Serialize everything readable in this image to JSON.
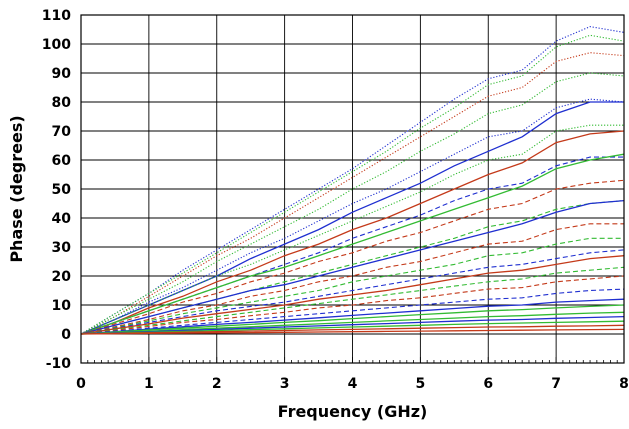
{
  "chart_data": {
    "type": "line",
    "title": "",
    "xlabel": "Frequency (GHz)",
    "ylabel": "Phase (degrees)",
    "xlim": [
      0,
      8
    ],
    "ylim": [
      -10,
      110
    ],
    "x_ticks": [
      0,
      1,
      2,
      3,
      4,
      5,
      6,
      7,
      8
    ],
    "y_ticks": [
      -10,
      0,
      10,
      20,
      30,
      40,
      50,
      60,
      70,
      80,
      90,
      100,
      110
    ],
    "grid": true,
    "legend": "none",
    "x": [
      0,
      0.5,
      1,
      1.5,
      2,
      2.5,
      3,
      3.5,
      4,
      4.5,
      5,
      5.5,
      6,
      6.5,
      7,
      7.5,
      8
    ],
    "series_colors": {
      "blue": "#1f2fd0",
      "green": "#33bb33",
      "red": "#c43a1a"
    },
    "series": [
      {
        "color": "blue",
        "style": "dotted",
        "values": [
          0,
          7,
          14,
          22,
          29,
          36,
          43,
          50,
          57,
          65,
          73,
          81,
          88,
          91,
          101,
          106,
          104
        ]
      },
      {
        "color": "green",
        "style": "dotted",
        "values": [
          0,
          7,
          14,
          21,
          28,
          35,
          42,
          49,
          56,
          63,
          71,
          78,
          86,
          89,
          99,
          103,
          101
        ]
      },
      {
        "color": "red",
        "style": "dotted",
        "values": [
          0,
          6,
          13,
          20,
          27,
          33,
          40,
          47,
          54,
          61,
          68,
          75,
          82,
          85,
          94,
          97,
          96
        ]
      },
      {
        "color": "green",
        "style": "dotted",
        "values": [
          0,
          6,
          12,
          18,
          25,
          31,
          37,
          43,
          50,
          56,
          63,
          69,
          76,
          79,
          87,
          90,
          89
        ]
      },
      {
        "color": "blue",
        "style": "dotted",
        "values": [
          0,
          5,
          11,
          16,
          22,
          28,
          33,
          39,
          45,
          50,
          56,
          62,
          68,
          70,
          78,
          81,
          80
        ]
      },
      {
        "color": "blue",
        "style": "solid",
        "values": [
          0,
          5,
          10,
          15,
          20,
          26,
          31,
          36,
          42,
          47,
          52,
          58,
          63,
          68,
          76,
          80,
          80
        ]
      },
      {
        "color": "green",
        "style": "dotted",
        "values": [
          0,
          5,
          10,
          15,
          20,
          24,
          29,
          34,
          39,
          44,
          49,
          55,
          60,
          62,
          70,
          72,
          72
        ]
      },
      {
        "color": "red",
        "style": "solid",
        "values": [
          0,
          4,
          9,
          13,
          18,
          22,
          27,
          31,
          36,
          40,
          45,
          50,
          55,
          59,
          66,
          69,
          70
        ]
      },
      {
        "color": "blue",
        "style": "dashed",
        "values": [
          0,
          4,
          8,
          12,
          16,
          20,
          24,
          28,
          33,
          37,
          41,
          46,
          50,
          52,
          58,
          61,
          61
        ]
      },
      {
        "color": "green",
        "style": "solid",
        "values": [
          0,
          4,
          8,
          12,
          16,
          20,
          23,
          27,
          31,
          35,
          39,
          43,
          47,
          51,
          57,
          60,
          62
        ]
      },
      {
        "color": "red",
        "style": "dashed",
        "values": [
          0,
          3.5,
          7,
          11,
          14,
          18,
          21,
          25,
          28,
          32,
          35,
          39,
          43,
          45,
          50,
          52,
          53
        ]
      },
      {
        "color": "green",
        "style": "dashed",
        "values": [
          0,
          3,
          6,
          9,
          12,
          15,
          18,
          21,
          24,
          27,
          30,
          33,
          37,
          39,
          43,
          45,
          46
        ]
      },
      {
        "color": "blue",
        "style": "solid",
        "values": [
          0,
          3,
          6,
          9,
          12,
          15,
          17,
          20,
          23,
          26,
          29,
          32,
          35,
          38,
          42,
          45,
          46
        ]
      },
      {
        "color": "red",
        "style": "dashed",
        "values": [
          0,
          2.5,
          5,
          8,
          10,
          13,
          15,
          18,
          20,
          23,
          25,
          28,
          31,
          32,
          36,
          38,
          38
        ]
      },
      {
        "color": "green",
        "style": "dashed",
        "values": [
          0,
          2.2,
          4.5,
          7,
          9,
          11,
          13,
          15,
          18,
          20,
          22,
          24,
          27,
          28,
          31,
          33,
          33
        ]
      },
      {
        "color": "blue",
        "style": "dashed",
        "values": [
          0,
          2,
          4,
          6,
          8,
          9.5,
          11,
          13,
          15,
          17,
          19,
          21,
          23,
          24,
          26,
          28,
          29
        ]
      },
      {
        "color": "red",
        "style": "solid",
        "values": [
          0,
          1.8,
          3.5,
          5.5,
          7,
          8.5,
          10,
          12,
          13.5,
          15,
          17,
          19,
          21,
          22,
          24,
          26,
          27
        ]
      },
      {
        "color": "green",
        "style": "dashed",
        "values": [
          0,
          1.5,
          3,
          4.5,
          6,
          7.5,
          9,
          10.5,
          12,
          13.5,
          15,
          16.5,
          18,
          19,
          21,
          22,
          23
        ]
      },
      {
        "color": "red",
        "style": "dashed",
        "values": [
          0,
          1.3,
          2.6,
          4,
          5,
          6.3,
          7.5,
          9,
          10,
          11.5,
          12.5,
          14,
          15.5,
          16,
          18,
          19,
          20
        ]
      },
      {
        "color": "blue",
        "style": "dashed",
        "values": [
          0,
          1,
          2,
          3,
          4,
          5,
          6,
          7,
          8,
          9,
          10,
          11,
          12,
          12.5,
          14,
          15,
          15.5
        ]
      },
      {
        "color": "blue",
        "style": "solid",
        "values": [
          0,
          0.8,
          1.7,
          2.5,
          3.3,
          4,
          4.8,
          5.6,
          6.4,
          7.2,
          8,
          8.8,
          9.6,
          10,
          11,
          11.5,
          12
        ]
      },
      {
        "color": "green",
        "style": "solid",
        "values": [
          0,
          0.7,
          1.4,
          2,
          2.7,
          3.3,
          4,
          4.6,
          5.3,
          6,
          6.7,
          7.3,
          8,
          8.4,
          9,
          9.5,
          10
        ]
      },
      {
        "color": "green",
        "style": "solid",
        "values": [
          0,
          0.5,
          1,
          1.5,
          2,
          2.5,
          3,
          3.5,
          4,
          4.5,
          5,
          5.5,
          6,
          6.3,
          6.8,
          7.2,
          7.5
        ]
      },
      {
        "color": "blue",
        "style": "solid",
        "values": [
          0,
          0.4,
          0.8,
          1.2,
          1.6,
          2,
          2.4,
          2.8,
          3.2,
          3.6,
          4,
          4.4,
          4.8,
          5,
          5.4,
          5.7,
          6
        ]
      },
      {
        "color": "green",
        "style": "solid",
        "values": [
          0,
          0.3,
          0.6,
          0.9,
          1.2,
          1.5,
          1.8,
          2.1,
          2.4,
          2.7,
          3,
          3.3,
          3.6,
          3.8,
          4,
          4.2,
          4.4
        ]
      },
      {
        "color": "red",
        "style": "solid",
        "values": [
          0,
          0.2,
          0.4,
          0.6,
          0.8,
          1,
          1.2,
          1.4,
          1.6,
          1.8,
          2,
          2.2,
          2.4,
          2.5,
          2.7,
          2.8,
          3
        ]
      },
      {
        "color": "red",
        "style": "solid",
        "values": [
          0,
          0.1,
          0.2,
          0.3,
          0.4,
          0.5,
          0.6,
          0.7,
          0.8,
          0.9,
          1,
          1.1,
          1.2,
          1.3,
          1.4,
          1.5,
          1.6
        ]
      }
    ]
  }
}
